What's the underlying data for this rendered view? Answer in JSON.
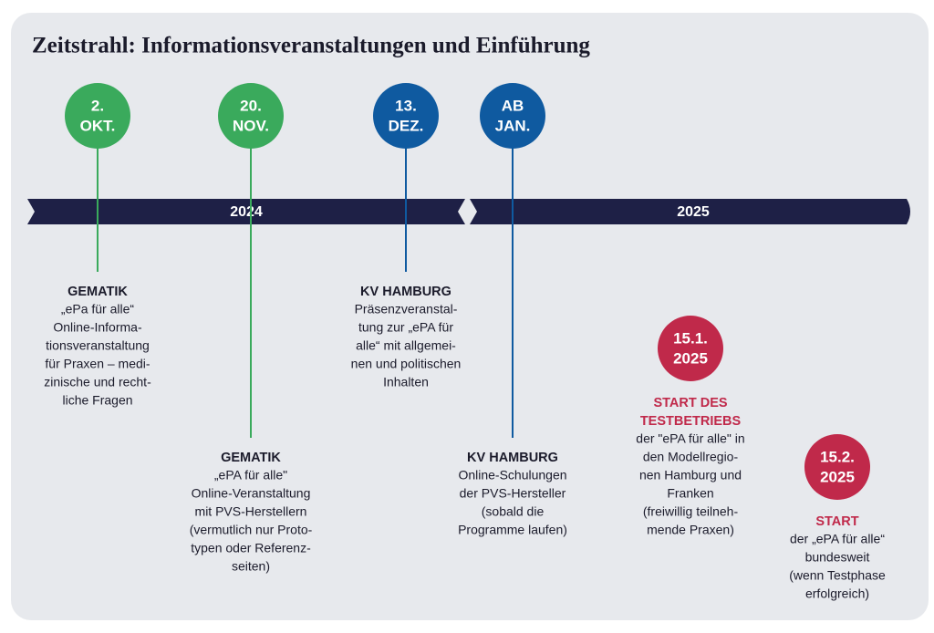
{
  "title": "Zeitstrahl: Informationsveranstaltungen und Einführung",
  "years": [
    "2024",
    "2025"
  ],
  "events": [
    {
      "date": [
        "2.",
        "OKT."
      ],
      "color": "#3aaa5c",
      "heading": [
        "GEMATIK"
      ],
      "text": [
        "„ePa für alle“",
        "Online-Informa-",
        "tionsveranstaltung",
        "für Praxen – medi-",
        "zinische und recht-",
        "liche Fragen"
      ]
    },
    {
      "date": [
        "20.",
        "NOV."
      ],
      "color": "#3aaa5c",
      "heading": [
        "GEMATIK"
      ],
      "text": [
        "„ePA für alle\"",
        "Online-Veranstaltung",
        "mit PVS-Herstellern",
        "(vermutlich nur Proto-",
        "typen oder Referenz-",
        "seiten)"
      ]
    },
    {
      "date": [
        "13.",
        "DEZ."
      ],
      "color": "#0f5aa0",
      "heading": [
        "KV HAMBURG"
      ],
      "text": [
        "Präsenzveranstal-",
        "tung zur „ePA für",
        "alle“ mit allgemei-",
        "nen und politischen",
        "Inhalten"
      ]
    },
    {
      "date": [
        "AB",
        "JAN."
      ],
      "color": "#0f5aa0",
      "heading": [
        "KV HAMBURG"
      ],
      "text": [
        "Online-Schulungen",
        "der PVS-Hersteller",
        "(sobald die",
        "Programme laufen)"
      ]
    },
    {
      "date": [
        "15.1.",
        "2025"
      ],
      "color": "#c0294a",
      "heading": [
        "START DES",
        "TESTBETRIEBS"
      ],
      "text": [
        "der \"ePA für alle\" in",
        "den Modellregio-",
        "nen Hamburg und",
        "Franken",
        "(freiwillig teilneh-",
        "mende Praxen)"
      ]
    },
    {
      "date": [
        "15.2.",
        "2025"
      ],
      "color": "#c0294a",
      "heading": [
        "START"
      ],
      "text": [
        "der „ePA für alle“",
        "bundesweit",
        "(wenn Testphase",
        "erfolgreich)"
      ]
    }
  ]
}
